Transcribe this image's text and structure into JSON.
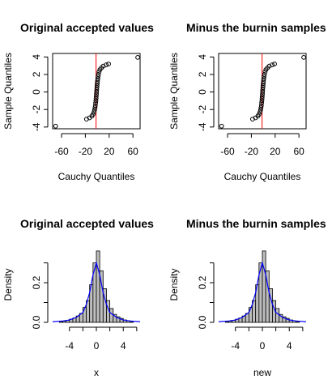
{
  "chart_data": [
    {
      "type": "scatter",
      "subtype": "qqplot",
      "title": "Original accepted values",
      "xlabel": "Cauchy Quantiles",
      "ylabel": "Sample Quantiles",
      "xlim": [
        -75,
        72
      ],
      "ylim": [
        -4.2,
        4.4
      ],
      "x_ticks": [
        -60,
        -20,
        20,
        60
      ],
      "y_ticks": [
        -4,
        -2,
        0,
        2,
        4
      ],
      "box": true,
      "reference_line": {
        "x": -2,
        "color": "#ff0000"
      },
      "point_color": "#000000",
      "points": [
        [
          -70,
          -3.9
        ],
        [
          -18,
          -3.1
        ],
        [
          -13,
          -2.95
        ],
        [
          -9,
          -2.75
        ],
        [
          -7,
          -2.55
        ],
        [
          -5.5,
          -2.3
        ],
        [
          -4.5,
          -2.05
        ],
        [
          -3.8,
          -1.8
        ],
        [
          -3.2,
          -1.55
        ],
        [
          -2.7,
          -1.25
        ],
        [
          -2.3,
          -1.0
        ],
        [
          -2.0,
          -0.75
        ],
        [
          -1.7,
          -0.5
        ],
        [
          -1.4,
          -0.25
        ],
        [
          -1.2,
          0.0
        ],
        [
          -0.9,
          0.25
        ],
        [
          -0.6,
          0.5
        ],
        [
          -0.3,
          0.75
        ],
        [
          0.0,
          1.0
        ],
        [
          0.4,
          1.25
        ],
        [
          0.8,
          1.5
        ],
        [
          1.3,
          1.75
        ],
        [
          2.0,
          2.0
        ],
        [
          3.0,
          2.3
        ],
        [
          4.5,
          2.55
        ],
        [
          7,
          2.75
        ],
        [
          10,
          2.95
        ],
        [
          15,
          3.1
        ],
        [
          19,
          3.2
        ],
        [
          68,
          3.95
        ]
      ]
    },
    {
      "type": "scatter",
      "subtype": "qqplot",
      "title": "Minus the burnin samples",
      "xlabel": "Cauchy Quantiles",
      "ylabel": "Sample Quantiles",
      "xlim": [
        -75,
        72
      ],
      "ylim": [
        -4.2,
        4.4
      ],
      "x_ticks": [
        -60,
        -20,
        20,
        60
      ],
      "y_ticks": [
        -4,
        -2,
        0,
        2,
        4
      ],
      "box": true,
      "reference_line": {
        "x": -2,
        "color": "#ff0000"
      },
      "point_color": "#000000",
      "points": [
        [
          -70,
          -3.9
        ],
        [
          -18,
          -3.1
        ],
        [
          -13,
          -2.95
        ],
        [
          -9,
          -2.75
        ],
        [
          -7,
          -2.55
        ],
        [
          -5.5,
          -2.3
        ],
        [
          -4.5,
          -2.05
        ],
        [
          -3.8,
          -1.8
        ],
        [
          -3.2,
          -1.55
        ],
        [
          -2.7,
          -1.25
        ],
        [
          -2.3,
          -1.0
        ],
        [
          -2.0,
          -0.75
        ],
        [
          -1.7,
          -0.5
        ],
        [
          -1.4,
          -0.25
        ],
        [
          -1.2,
          0.0
        ],
        [
          -0.9,
          0.25
        ],
        [
          -0.6,
          0.5
        ],
        [
          -0.3,
          0.75
        ],
        [
          0.0,
          1.0
        ],
        [
          0.4,
          1.25
        ],
        [
          0.8,
          1.5
        ],
        [
          1.3,
          1.75
        ],
        [
          2.0,
          2.0
        ],
        [
          3.0,
          2.3
        ],
        [
          4.5,
          2.55
        ],
        [
          7,
          2.75
        ],
        [
          10,
          2.95
        ],
        [
          15,
          3.1
        ],
        [
          19,
          3.2
        ],
        [
          68,
          3.95
        ]
      ]
    },
    {
      "type": "bar",
      "subtype": "histogram",
      "title": "Original accepted values",
      "xlabel": "x",
      "ylabel": "Density",
      "xlim": [
        -6.5,
        6.5
      ],
      "ylim": [
        0,
        0.38
      ],
      "x_ticks": [
        -4,
        0,
        4
      ],
      "y_ticks": [
        0.0,
        0.2
      ],
      "box": false,
      "bin_width": 0.5,
      "bar_fill": "#bebebe",
      "density_color": "#0000ff",
      "bins": [
        [
          -5.5,
          -5,
          0.004
        ],
        [
          -5,
          -4.5,
          0.006
        ],
        [
          -4.5,
          -4,
          0.01
        ],
        [
          -4,
          -3.5,
          0.016
        ],
        [
          -3.5,
          -3,
          0.022
        ],
        [
          -3,
          -2.5,
          0.032
        ],
        [
          -2.5,
          -2,
          0.045
        ],
        [
          -2,
          -1.5,
          0.075
        ],
        [
          -1.5,
          -1,
          0.11
        ],
        [
          -1,
          -0.5,
          0.19
        ],
        [
          -0.5,
          0,
          0.3
        ],
        [
          0,
          0.5,
          0.36
        ],
        [
          0.5,
          1,
          0.26
        ],
        [
          1,
          1.5,
          0.17
        ],
        [
          1.5,
          2,
          0.11
        ],
        [
          2,
          2.5,
          0.07
        ],
        [
          2.5,
          3,
          0.04
        ],
        [
          3,
          3.5,
          0.028
        ],
        [
          3.5,
          4,
          0.02
        ],
        [
          4,
          4.5,
          0.012
        ],
        [
          4.5,
          5,
          0.008
        ],
        [
          5,
          5.5,
          0.004
        ]
      ],
      "density_curve": [
        [
          -6.5,
          0.003
        ],
        [
          -5,
          0.007
        ],
        [
          -4,
          0.012
        ],
        [
          -3,
          0.025
        ],
        [
          -2,
          0.05
        ],
        [
          -1.5,
          0.09
        ],
        [
          -1,
          0.15
        ],
        [
          -0.5,
          0.24
        ],
        [
          0,
          0.3
        ],
        [
          0.5,
          0.24
        ],
        [
          1,
          0.15
        ],
        [
          1.5,
          0.09
        ],
        [
          2,
          0.05
        ],
        [
          3,
          0.025
        ],
        [
          4,
          0.012
        ],
        [
          5,
          0.007
        ],
        [
          6.5,
          0.003
        ]
      ]
    },
    {
      "type": "bar",
      "subtype": "histogram",
      "title": "Minus the burnin samples",
      "xlabel": "new",
      "ylabel": "Density",
      "xlim": [
        -6.5,
        6.5
      ],
      "ylim": [
        0,
        0.38
      ],
      "x_ticks": [
        -4,
        0,
        4
      ],
      "y_ticks": [
        0.0,
        0.2
      ],
      "box": false,
      "bin_width": 0.5,
      "bar_fill": "#bebebe",
      "density_color": "#0000ff",
      "bins": [
        [
          -5.5,
          -5,
          0.004
        ],
        [
          -5,
          -4.5,
          0.006
        ],
        [
          -4.5,
          -4,
          0.01
        ],
        [
          -4,
          -3.5,
          0.016
        ],
        [
          -3.5,
          -3,
          0.022
        ],
        [
          -3,
          -2.5,
          0.032
        ],
        [
          -2.5,
          -2,
          0.045
        ],
        [
          -2,
          -1.5,
          0.075
        ],
        [
          -1.5,
          -1,
          0.11
        ],
        [
          -1,
          -0.5,
          0.19
        ],
        [
          -0.5,
          0,
          0.3
        ],
        [
          0,
          0.5,
          0.36
        ],
        [
          0.5,
          1,
          0.26
        ],
        [
          1,
          1.5,
          0.17
        ],
        [
          1.5,
          2,
          0.11
        ],
        [
          2,
          2.5,
          0.07
        ],
        [
          2.5,
          3,
          0.04
        ],
        [
          3,
          3.5,
          0.028
        ],
        [
          3.5,
          4,
          0.02
        ],
        [
          4,
          4.5,
          0.012
        ],
        [
          4.5,
          5,
          0.008
        ],
        [
          5,
          5.5,
          0.004
        ]
      ],
      "density_curve": [
        [
          -6.5,
          0.003
        ],
        [
          -5,
          0.007
        ],
        [
          -4,
          0.012
        ],
        [
          -3,
          0.025
        ],
        [
          -2,
          0.05
        ],
        [
          -1.5,
          0.09
        ],
        [
          -1,
          0.15
        ],
        [
          -0.5,
          0.24
        ],
        [
          0,
          0.3
        ],
        [
          0.5,
          0.24
        ],
        [
          1,
          0.15
        ],
        [
          1.5,
          0.09
        ],
        [
          2,
          0.05
        ],
        [
          3,
          0.025
        ],
        [
          4,
          0.012
        ],
        [
          5,
          0.007
        ],
        [
          6.5,
          0.003
        ]
      ]
    }
  ]
}
